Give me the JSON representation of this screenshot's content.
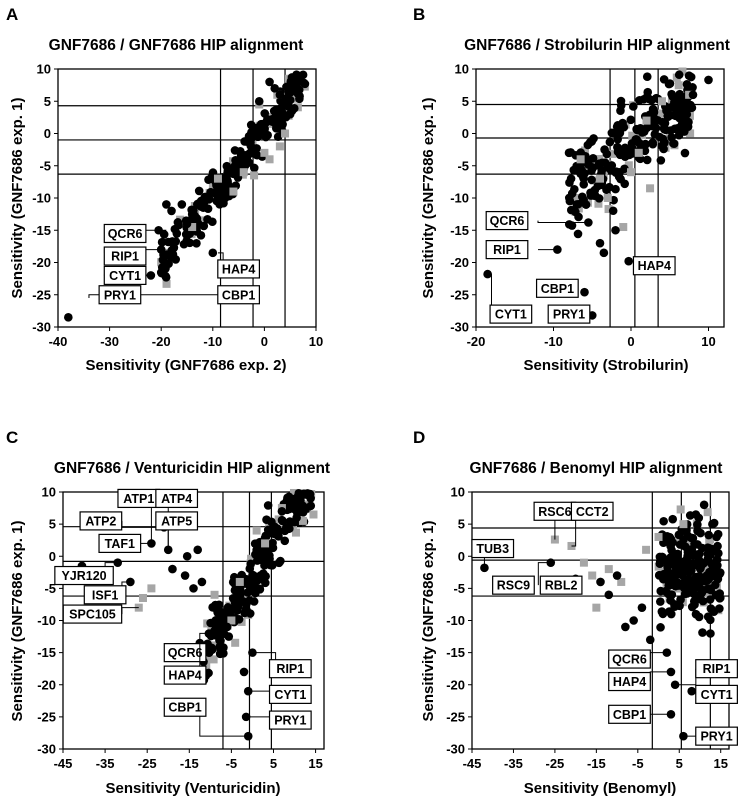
{
  "chart_data": [
    {
      "type": "scatter",
      "panel": "A",
      "title": "GNF7686 / GNF7686 HIP alignment",
      "xlabel": "Sensitivity (GNF7686 exp. 2)",
      "ylabel": "Sensitivity (GNF7686 exp. 1)",
      "xlim": [
        -40,
        10
      ],
      "ylim": [
        -30,
        10
      ],
      "xticks": [
        -40,
        -30,
        -20,
        -10,
        0,
        10
      ],
      "xtick_labels": [
        "-40",
        "-30",
        "-20",
        "-10",
        "0",
        "10"
      ],
      "yticks": [
        -30,
        -25,
        -20,
        -15,
        -10,
        -5,
        0,
        5,
        10
      ],
      "ytick_labels": [
        "-30",
        "-25",
        "-20",
        "-15",
        "-10",
        "-5",
        "0",
        "5",
        "10"
      ],
      "vlines": [
        -8.5,
        -2.2,
        4
      ],
      "hlines": [
        4.3,
        -1,
        -6.3
      ],
      "cloud": {
        "cx": -2,
        "cy": -2,
        "slope": 1.0,
        "spread": 2.2,
        "xmin": -20,
        "xmax": 8,
        "n_black": 230,
        "n_gray": 45
      },
      "points": [
        {
          "x": -38,
          "y": -28.5
        },
        {
          "x": -25,
          "y": -25
        },
        {
          "x": -22,
          "y": -22
        },
        {
          "x": -20,
          "y": -18
        },
        {
          "x": -20.5,
          "y": -15
        },
        {
          "x": -15,
          "y": -14
        },
        {
          "x": -10,
          "y": -18.5
        },
        {
          "x": -13,
          "y": -11
        },
        {
          "x": -18,
          "y": -12
        },
        {
          "x": -16,
          "y": -11
        },
        {
          "x": -19,
          "y": -11
        },
        {
          "x": -14,
          "y": -12.5
        },
        {
          "x": 1,
          "y": 8
        },
        {
          "x": 3,
          "y": 6
        },
        {
          "x": 6.5,
          "y": 8
        },
        {
          "x": 2,
          "y": 7
        },
        {
          "x": -1,
          "y": 5
        },
        {
          "x": 5,
          "y": 3
        }
      ],
      "gray_points": [
        {
          "x": -6,
          "y": -9
        },
        {
          "x": -14,
          "y": -14.5
        },
        {
          "x": -4,
          "y": -6
        },
        {
          "x": 0,
          "y": -3
        },
        {
          "x": 2.5,
          "y": 6
        },
        {
          "x": -1,
          "y": 4.5
        },
        {
          "x": 4,
          "y": 0
        },
        {
          "x": -2,
          "y": -6.5
        },
        {
          "x": -9,
          "y": -7
        },
        {
          "x": 3,
          "y": -2
        },
        {
          "x": 1,
          "y": -4
        }
      ],
      "genes": [
        {
          "label": "QCR6",
          "x": -27,
          "y": -15.5,
          "px": -19,
          "py": -15,
          "lx": -31,
          "ly": -15
        },
        {
          "label": "RIP1",
          "x": -27,
          "y": -19,
          "px": -20,
          "py": -18,
          "lx": -31,
          "ly": -18.5
        },
        {
          "label": "CYT1",
          "x": -27,
          "y": -22,
          "px": -22,
          "py": -22,
          "lx": -31,
          "ly": -21.8
        },
        {
          "label": "PRY1",
          "x": -28,
          "y": -25,
          "px": -25,
          "py": -25,
          "lx": -34,
          "ly": -25.5
        },
        {
          "label": "HAP4",
          "x": -5,
          "y": -21,
          "px": -9,
          "py": -18.5,
          "lx": -8,
          "ly": -21
        },
        {
          "label": "CBP1",
          "x": -5,
          "y": -25,
          "px": -24,
          "py": -25,
          "lx": -8,
          "ly": -25
        }
      ]
    },
    {
      "type": "scatter",
      "panel": "B",
      "title": "GNF7686 / Strobilurin HIP alignment",
      "xlabel": "Sensitivity (Strobilurin)",
      "ylabel": "Sensitivity (GNF7686 exp. 1)",
      "xlim": [
        -20,
        12
      ],
      "ylim": [
        -30,
        10
      ],
      "xticks": [
        -20,
        -10,
        0,
        10
      ],
      "xtick_labels": [
        "-20",
        "-10",
        "0",
        "10"
      ],
      "yticks": [
        -30,
        -25,
        -20,
        -15,
        -10,
        -5,
        0,
        5,
        10
      ],
      "ytick_labels": [
        "-30",
        "-25",
        "-20",
        "-15",
        "-10",
        "-5",
        "0",
        "5",
        "10"
      ],
      "vlines": [
        -2.7,
        0.5,
        3.5
      ],
      "hlines": [
        4.5,
        -0.7,
        -6.3
      ],
      "cloud": {
        "cx": -0.5,
        "cy": -2,
        "slope": 0.9,
        "spread": 4.5,
        "xmin": -8,
        "xmax": 8,
        "n_black": 230,
        "n_gray": 45
      },
      "points": [
        {
          "x": 10,
          "y": 8.3
        },
        {
          "x": 8,
          "y": 6
        },
        {
          "x": -18.5,
          "y": -21.8
        },
        {
          "x": -9.5,
          "y": -18
        },
        {
          "x": -5.5,
          "y": -13.8
        },
        {
          "x": -6,
          "y": -24.6
        },
        {
          "x": -5,
          "y": -28.2
        },
        {
          "x": -0.3,
          "y": -19.8
        },
        {
          "x": -4,
          "y": -17
        },
        {
          "x": -3.5,
          "y": -18.5
        },
        {
          "x": -7,
          "y": -11
        },
        {
          "x": -6.5,
          "y": -6
        },
        {
          "x": -8,
          "y": -3
        },
        {
          "x": -2,
          "y": -15
        }
      ],
      "gray_points": [
        {
          "x": -1,
          "y": -14.5
        },
        {
          "x": -3,
          "y": -10
        },
        {
          "x": -4,
          "y": -7
        },
        {
          "x": 1,
          "y": -3
        },
        {
          "x": 4,
          "y": 5
        },
        {
          "x": 7.5,
          "y": 6
        },
        {
          "x": -6.5,
          "y": -4
        },
        {
          "x": 2,
          "y": 2
        },
        {
          "x": 0,
          "y": -6
        }
      ],
      "genes": [
        {
          "label": "QCR6",
          "x": -16,
          "y": -13.5,
          "px": -5.5,
          "py": -13.8,
          "lx": -12,
          "ly": -13.5
        },
        {
          "label": "RIP1",
          "x": -16,
          "y": -18,
          "px": -9.5,
          "py": -18,
          "lx": -12,
          "ly": -18
        },
        {
          "label": "HAP4",
          "x": 3,
          "y": -20.5,
          "px": -0.3,
          "py": -19.8,
          "lx": 1,
          "ly": -20.5
        },
        {
          "label": "CBP1",
          "x": -9.5,
          "y": -24,
          "px": -6,
          "py": -24.6,
          "lx": -6.5,
          "ly": -24.6
        },
        {
          "label": "CYT1",
          "x": -15.5,
          "y": -28,
          "px": -18.5,
          "py": -21.8,
          "lx": -18,
          "ly": -28
        },
        {
          "label": "PRY1",
          "x": -8,
          "y": -28,
          "px": -5,
          "py": -28.2,
          "lx": -6,
          "ly": -28
        }
      ]
    },
    {
      "type": "scatter",
      "panel": "C",
      "title": "GNF7686 / Venturicidin HIP alignment",
      "xlabel": "Sensitivity (Venturicidin)",
      "ylabel": "Sensitivity (GNF7686 exp. 1)",
      "xlim": [
        -45,
        17
      ],
      "ylim": [
        -30,
        10
      ],
      "xticks": [
        -45,
        -35,
        -25,
        -15,
        -5,
        5,
        15
      ],
      "xtick_labels": [
        "-45",
        "-35",
        "-25",
        "-15",
        "-5",
        "5",
        "15"
      ],
      "yticks": [
        -30,
        -25,
        -20,
        -15,
        -10,
        -5,
        0,
        5,
        10
      ],
      "ytick_labels": [
        "-30",
        "-25",
        "-20",
        "-15",
        "-10",
        "-5",
        "0",
        "5",
        "10"
      ],
      "vlines": [
        -7,
        -0.7,
        4.5
      ],
      "hlines": [
        4.6,
        -0.8,
        -6.2
      ],
      "cloud": {
        "cx": 1,
        "cy": -2,
        "slope": 1.1,
        "spread": 3.5,
        "xmin": -12,
        "xmax": 14,
        "n_black": 230,
        "n_gray": 45
      },
      "points": [
        {
          "x": -40.5,
          "y": -1.5
        },
        {
          "x": -32,
          "y": -1
        },
        {
          "x": -29,
          "y": -4
        },
        {
          "x": -24,
          "y": 2
        },
        {
          "x": -20,
          "y": 1
        },
        {
          "x": -21,
          "y": 4.5
        },
        {
          "x": -15.5,
          "y": 0
        },
        {
          "x": -13,
          "y": 1
        },
        {
          "x": -16,
          "y": -3
        },
        {
          "x": -14,
          "y": -5
        },
        {
          "x": -12,
          "y": -4
        },
        {
          "x": -19,
          "y": -2
        },
        {
          "x": -12.5,
          "y": -13.5
        },
        {
          "x": -1,
          "y": -28
        },
        {
          "x": -1.5,
          "y": -25
        },
        {
          "x": -1,
          "y": -21
        },
        {
          "x": -2,
          "y": -18
        },
        {
          "x": 0,
          "y": -15
        },
        {
          "x": 9,
          "y": 8
        },
        {
          "x": 10.5,
          "y": 6
        },
        {
          "x": 7,
          "y": 7
        },
        {
          "x": -8,
          "y": -12
        },
        {
          "x": -6,
          "y": -11
        },
        {
          "x": -9,
          "y": -8
        }
      ],
      "gray_points": [
        {
          "x": -27,
          "y": -8
        },
        {
          "x": -24,
          "y": -5
        },
        {
          "x": -26,
          "y": -6.5
        },
        {
          "x": -9,
          "y": -6
        },
        {
          "x": -5,
          "y": -10
        },
        {
          "x": 7,
          "y": 7.5
        },
        {
          "x": 12,
          "y": 5.5
        },
        {
          "x": 14.5,
          "y": 6.5
        },
        {
          "x": 3,
          "y": 2
        },
        {
          "x": -3,
          "y": -4
        },
        {
          "x": 1,
          "y": 4
        }
      ],
      "genes": [
        {
          "label": "ATP1",
          "x": -27,
          "y": 9,
          "px": -24,
          "py": 2,
          "lx": -24,
          "ly": 7.5
        },
        {
          "label": "ATP4",
          "x": -18,
          "y": 9,
          "px": -20,
          "py": 1,
          "lx": -20,
          "ly": 7.5
        },
        {
          "label": "ATP2",
          "x": -36,
          "y": 5.5,
          "px": -21,
          "py": 4.5,
          "lx": -31,
          "ly": 5.5
        },
        {
          "label": "ATP5",
          "x": -18,
          "y": 5.5,
          "px": -20,
          "py": 1,
          "lx": -20,
          "ly": 4.5
        },
        {
          "label": "TAF1",
          "x": -31.5,
          "y": 2,
          "px": -24,
          "py": 2,
          "lx": -27,
          "ly": 2
        },
        {
          "label": "YJR120",
          "x": -40,
          "y": -3,
          "px": -32,
          "py": -1,
          "lx": -35,
          "ly": -3
        },
        {
          "label": "ISF1",
          "x": -35,
          "y": -6,
          "px": -29,
          "py": -4,
          "lx": -31,
          "ly": -6
        },
        {
          "label": "SPC105",
          "x": -38,
          "y": -9,
          "px": -27,
          "py": -8,
          "lx": -31,
          "ly": -9
        },
        {
          "label": "QCR6",
          "x": -16,
          "y": -15,
          "px": -12.5,
          "py": -13.5,
          "lx": -12.5,
          "ly": -14.5
        },
        {
          "label": "HAP4",
          "x": -16,
          "y": -18.5,
          "px": -8,
          "py": -12,
          "lx": -12.5,
          "ly": -18.5
        },
        {
          "label": "CBP1",
          "x": -16,
          "y": -23.5,
          "px": -1,
          "py": -28,
          "lx": -12.5,
          "ly": -23.5
        },
        {
          "label": "RIP1",
          "x": 9,
          "y": -17.5,
          "px": 0,
          "py": -15,
          "lx": 5.5,
          "ly": -17.5
        },
        {
          "label": "CYT1",
          "x": 9,
          "y": -21.5,
          "px": -1,
          "py": -21,
          "lx": 5.5,
          "ly": -21.5
        },
        {
          "label": "PRY1",
          "x": 9,
          "y": -25.5,
          "px": -1.5,
          "py": -25,
          "lx": 5.5,
          "ly": -25.5
        }
      ]
    },
    {
      "type": "scatter",
      "panel": "D",
      "title": "GNF7686 / Benomyl HIP alignment",
      "xlabel": "Sensitivity (Benomyl)",
      "ylabel": "Sensitivity (GNF7686 exp. 1)",
      "xlim": [
        -45,
        17
      ],
      "ylim": [
        -30,
        10
      ],
      "xticks": [
        -45,
        -35,
        -25,
        -15,
        -5,
        5,
        15
      ],
      "xtick_labels": [
        "-45",
        "-35",
        "-25",
        "-15",
        "-5",
        "5",
        "15"
      ],
      "yticks": [
        -30,
        -25,
        -20,
        -15,
        -10,
        -5,
        0,
        5,
        10
      ],
      "ytick_labels": [
        "-30",
        "-25",
        "-20",
        "-15",
        "-10",
        "-5",
        "0",
        "5",
        "10"
      ],
      "vlines": [
        -1.5,
        5.5,
        12.5
      ],
      "hlines": [
        4.4,
        -0.6,
        -6.2
      ],
      "cloud": {
        "cx": 7,
        "cy": -2,
        "slope": 0,
        "spread": 5.5,
        "xmin": 0,
        "xmax": 15,
        "n_black": 210,
        "n_gray": 35
      },
      "points": [
        {
          "x": -42,
          "y": -1.8
        },
        {
          "x": -26,
          "y": -1
        },
        {
          "x": -20,
          "y": -3.5
        },
        {
          "x": -12,
          "y": -6
        },
        {
          "x": -8,
          "y": -11
        },
        {
          "x": -6,
          "y": -10
        },
        {
          "x": -14,
          "y": -4
        },
        {
          "x": -10,
          "y": -3
        },
        {
          "x": -4,
          "y": -8
        },
        {
          "x": 3,
          "y": -18
        },
        {
          "x": 3,
          "y": -24.6
        },
        {
          "x": 6,
          "y": -28
        },
        {
          "x": 8,
          "y": -21
        },
        {
          "x": 11,
          "y": 8
        },
        {
          "x": 9,
          "y": 6.5
        },
        {
          "x": 13,
          "y": 5
        },
        {
          "x": 14,
          "y": 3
        },
        {
          "x": 2,
          "y": -15
        },
        {
          "x": -2,
          "y": -13
        },
        {
          "x": 4,
          "y": -20
        }
      ],
      "gray_points": [
        {
          "x": -25,
          "y": 2.6
        },
        {
          "x": -21,
          "y": 1.6
        },
        {
          "x": -26,
          "y": -4
        },
        {
          "x": -18,
          "y": -1
        },
        {
          "x": -16,
          "y": -3
        },
        {
          "x": -12,
          "y": -2
        },
        {
          "x": -15,
          "y": -8
        },
        {
          "x": -9,
          "y": -4
        },
        {
          "x": -3,
          "y": 1
        },
        {
          "x": 0,
          "y": 3
        },
        {
          "x": 6,
          "y": 5
        }
      ],
      "genes": [
        {
          "label": "RSC6",
          "x": -25,
          "y": 7,
          "px": -25,
          "py": 2.6,
          "lx": -25,
          "ly": 6
        },
        {
          "label": "CCT2",
          "x": -16,
          "y": 7,
          "px": -21,
          "py": 1.6,
          "lx": -20,
          "ly": 6
        },
        {
          "label": "TUB3",
          "x": -40,
          "y": 1.2,
          "px": -42,
          "py": -1.8,
          "lx": -42,
          "ly": 0.5
        },
        {
          "label": "RSC9",
          "x": -35,
          "y": -4.5,
          "px": -26,
          "py": -1,
          "lx": -29,
          "ly": -4.5
        },
        {
          "label": "RBL2",
          "x": -23.5,
          "y": -4.5,
          "px": -20,
          "py": -3.5,
          "lx": -20,
          "ly": -4.5
        },
        {
          "label": "QCR6",
          "x": -7,
          "y": -16,
          "px": 2,
          "py": -15,
          "lx": -2,
          "ly": -16
        },
        {
          "label": "HAP4",
          "x": -7,
          "y": -19.5,
          "px": 3,
          "py": -18,
          "lx": -2,
          "ly": -19.5
        },
        {
          "label": "CBP1",
          "x": -7,
          "y": -24.6,
          "px": 3,
          "py": -24.6,
          "lx": -2,
          "ly": -24.6
        },
        {
          "label": "RIP1",
          "x": 14,
          "y": -17.5,
          "px": 4,
          "py": -20,
          "lx": 9,
          "ly": -17.5
        },
        {
          "label": "CYT1",
          "x": 14,
          "y": -21.5,
          "px": 8,
          "py": -21,
          "lx": 9,
          "ly": -21.5
        },
        {
          "label": "PRY1",
          "x": 14,
          "y": -28,
          "px": 6,
          "py": -28,
          "lx": 9,
          "ly": -28
        }
      ]
    }
  ],
  "panel_letters": [
    "A",
    "B",
    "C",
    "D"
  ]
}
